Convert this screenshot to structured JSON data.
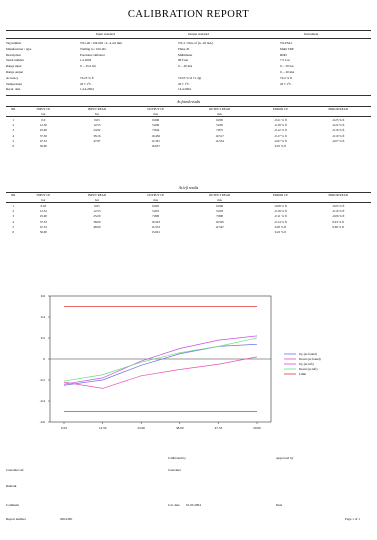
{
  "report": {
    "title": "CALIBRATION REPORT",
    "column_headers": [
      "Input standard",
      "Output standard",
      "Instrument"
    ],
    "field_labels": [
      "Tag number",
      "Manufacturer / type",
      "Description",
      "Serial number",
      "Range input",
      "Range output",
      "Accuracy",
      "Temperature",
      "Recal. date"
    ],
    "input_standard_values": [
      "TX1-40 / 104-002 / 4...2.4.0 mm",
      "Trailing io / 010. RC",
      "Precision calibrator",
      "1.2.2002",
      "0 ... 25.0 bar",
      "",
      "±0.25 % fl",
      "20 ± 1°C",
      "1.4.4.2004"
    ],
    "output_standard_values": [
      "TX-3 / Note of (4...20 mA)",
      "Fluke 45",
      "Multimeter",
      "99 Tron",
      "0 ... 20 mA",
      "",
      "±0.05 % rd ±1 dgt",
      "20 ± 1°C",
      "14.4.2004"
    ],
    "instrument_values": [
      "TX-PM-1",
      "Multi TRE",
      "ROD",
      "7.5 Cos",
      "0 ... 50 bar",
      "0 ... 20 mA",
      "±0.2 % fl",
      "20 ± 1°C",
      ""
    ]
  },
  "as_found": {
    "section_title": "As found results",
    "headers": [
      "NR",
      "INPUT CP",
      "INPUT READ",
      "OUTPUT CP",
      "OUTPUT READ",
      "ERROR CP",
      "ERROR READ"
    ],
    "units": [
      "",
      "bar",
      "bar",
      "mA",
      "mA",
      "",
      ""
    ],
    "rows": [
      [
        "1",
        "0.0",
        "0.03",
        "0.000",
        "0.005",
        "-0.21 % fl",
        "-0.25 % fl"
      ],
      [
        "2",
        "12.50",
        "12.55",
        "5.000",
        "5.005",
        "-0.18 % fl",
        "-0.22 % fl"
      ],
      [
        "3",
        "25.00",
        "24.92",
        "7.844",
        "7.875",
        "-0.12 % fl",
        "-0.16 % fl"
      ],
      [
        "4",
        "37.50",
        "38.16",
        "10.456",
        "10.517",
        "-0.17 % fl",
        "-0.10 % fl"
      ],
      [
        "5",
        "47.53",
        "47.87",
        "12.301",
        "12.534",
        "-0.07 % fl",
        "-0.07 % fl"
      ],
      [
        "6",
        "50.00",
        "",
        "16.057",
        "",
        "0.01 % fl",
        ""
      ]
    ]
  },
  "as_left": {
    "section_title": "As left results",
    "headers": [
      "NR",
      "INPUT CP",
      "INPUT READ",
      "OUTPUT CP",
      "OUTPUT READ",
      "ERROR CP",
      "ERROR READ"
    ],
    "units": [
      "",
      "bar",
      "bar",
      "mA",
      "mA",
      "",
      ""
    ],
    "rows": [
      [
        "1",
        "0.03",
        "0.03",
        "0.005",
        "0.006",
        "-0.08 % fl",
        "-0.05 % fl"
      ],
      [
        "2",
        "12.52",
        "12.53",
        "5.001",
        "5.003",
        "-0.18 % fl",
        "-0.10 % fl"
      ],
      [
        "3",
        "25.00",
        "25.00",
        "7.800",
        "7.800",
        "-0.11 % fl",
        "-0.06 % fl"
      ],
      [
        "4",
        "37.53",
        "38.00",
        "10.503",
        "10.505",
        "-0.14 % fl",
        "0.03 % fl"
      ],
      [
        "5",
        "47.53",
        "48.00",
        "12.533",
        "12.547",
        "0.05 % fl",
        "0.06 % fl"
      ],
      [
        "6",
        "50.00",
        "",
        "15.601",
        "",
        "0.22 % fl",
        ""
      ]
    ]
  },
  "chart_data": {
    "type": "line",
    "title": "",
    "xlabel": "",
    "ylabel": "",
    "categories": [
      "0.03",
      "12.50",
      "25.00",
      "38.00",
      "47.53",
      "50.00"
    ],
    "ylim": [
      -0.6,
      0.6
    ],
    "yticks": [
      "0.6",
      "0.4",
      "0.2",
      "0",
      "-0.2",
      "-0.4",
      "-0.6"
    ],
    "grid": false,
    "legend_position": "right",
    "series": [
      {
        "name": "Up (as found)",
        "color": "#6f6fe8",
        "values": [
          -0.25,
          -0.2,
          -0.06,
          0.05,
          0.12,
          0.14
        ]
      },
      {
        "name": "Down (as found)",
        "color": "#e84fb4",
        "values": [
          -0.22,
          -0.28,
          -0.16,
          -0.1,
          -0.05,
          0.02
        ]
      },
      {
        "name": "Up (as left)",
        "color": "#c94fe8",
        "values": [
          -0.24,
          -0.18,
          -0.02,
          0.1,
          0.18,
          0.22
        ]
      },
      {
        "name": "Down (as left)",
        "color": "#66e07a",
        "values": [
          -0.21,
          -0.15,
          -0.03,
          0.06,
          0.12,
          0.2
        ]
      },
      {
        "name": "Limit",
        "color": "#e23b3b",
        "values": [
          0.5,
          0.5,
          0.5,
          0.5,
          0.5,
          0.5
        ]
      },
      {
        "name": "",
        "color": "#e23b3b",
        "values": [
          -0.5,
          -0.5,
          -0.5,
          -0.5,
          -0.5,
          -0.5
        ]
      }
    ]
  },
  "footer": {
    "calibrated_by_label": "Calibrated by",
    "approved_by_label": "Approved by",
    "customer_ref_label": "Customer ref.",
    "customer_label": "Customer",
    "remark_label": "Remark",
    "comment_label": "Comment",
    "cal_date_label": "Cal. date",
    "cal_date_value": "01.03.2004",
    "date_label": "Date",
    "report_number_label": "Report number",
    "report_number_value": "2004-001",
    "page_label": "Page 1 of 1"
  }
}
